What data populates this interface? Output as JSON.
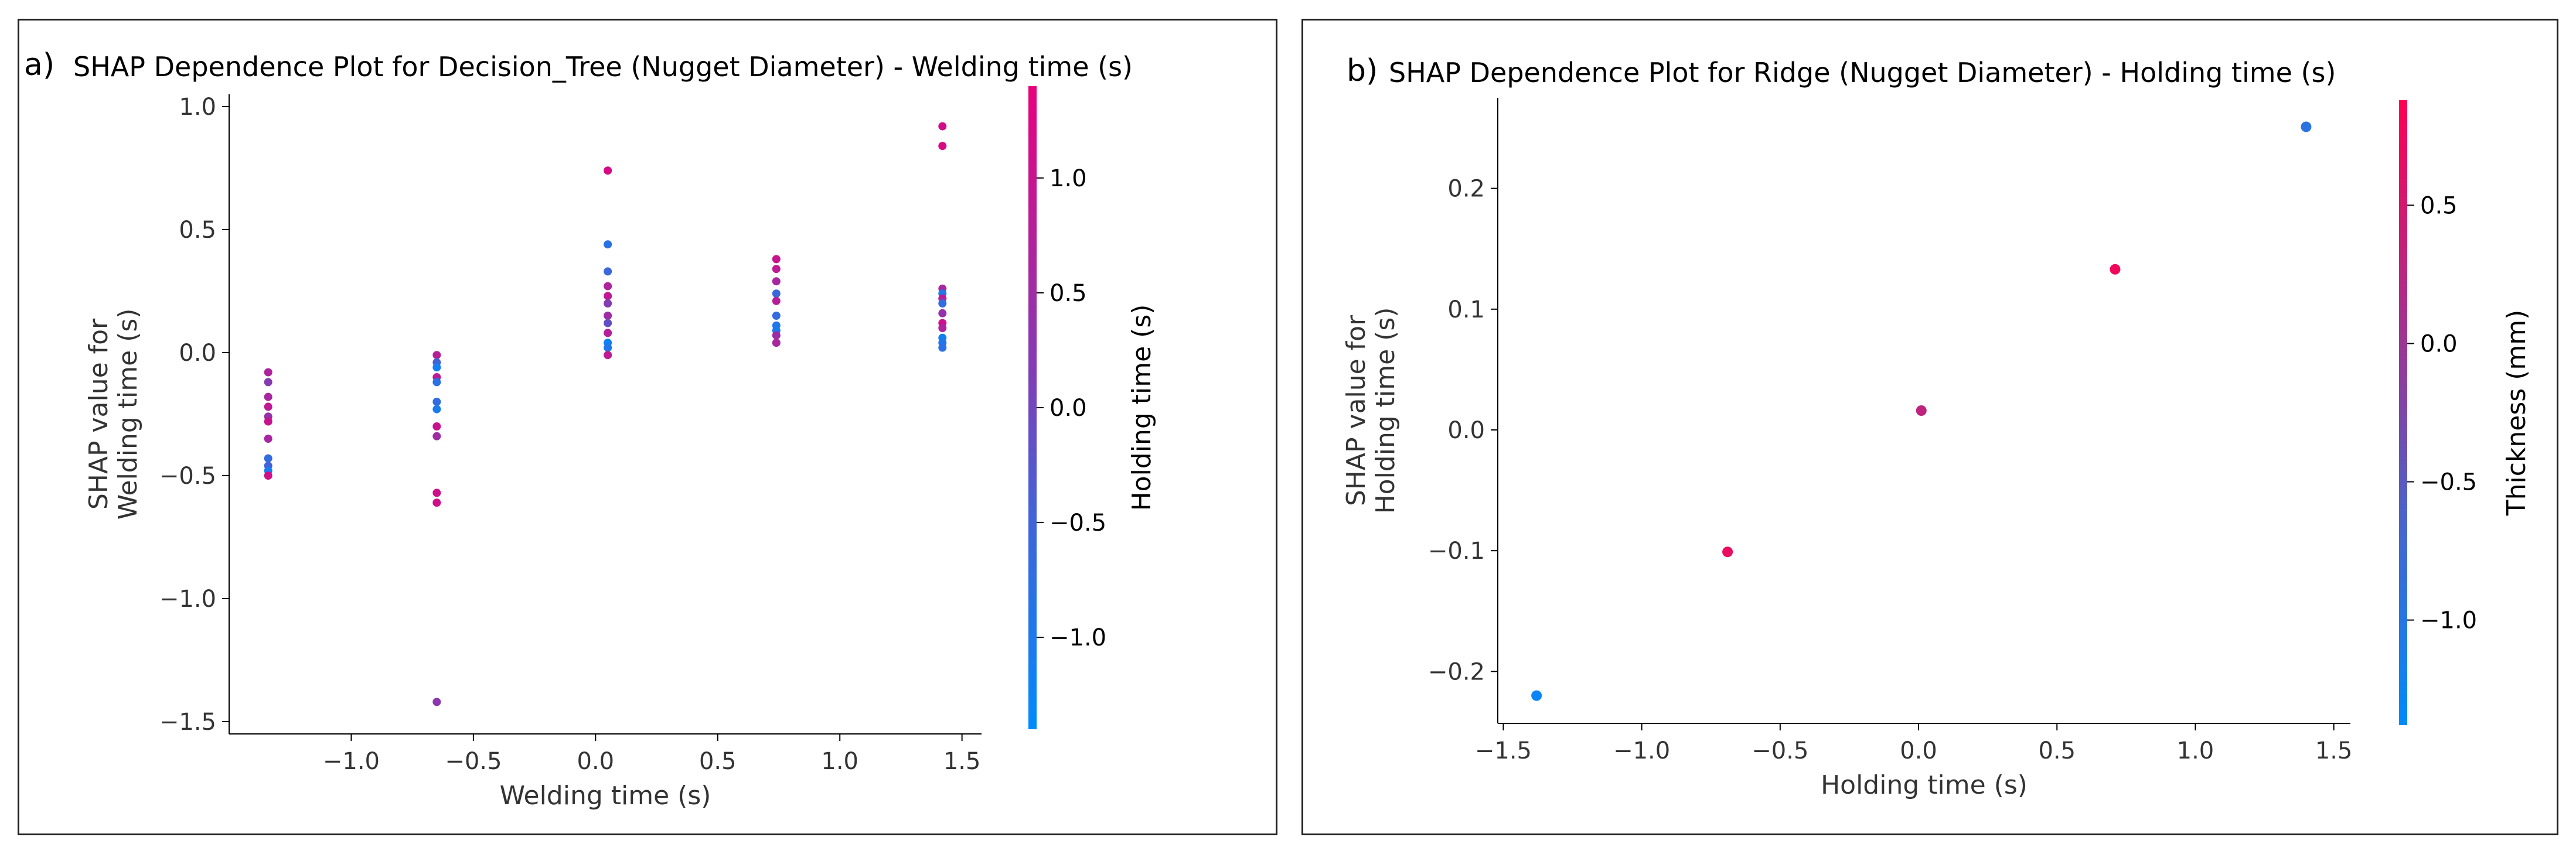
{
  "chart_data": [
    {
      "panel_label": "a)",
      "type": "scatter",
      "title": "SHAP Dependence Plot for Decision_Tree (Nugget Diameter) - Welding time (s)",
      "xlabel": "Welding time (s)",
      "ylabel": "SHAP value for\nWelding time (s)",
      "xlim": [
        -1.5,
        1.58
      ],
      "ylim": [
        -1.55,
        1.05
      ],
      "xticks": [
        -1.0,
        -0.5,
        0.0,
        0.5,
        1.0,
        1.5
      ],
      "yticks": [
        -1.5,
        -1.0,
        -0.5,
        0.0,
        0.5,
        1.0
      ],
      "colorbar": {
        "label": "Holding time (s)",
        "range": [
          -1.4,
          1.4
        ],
        "ticks": [
          -1.0,
          -0.5,
          0.0,
          0.5,
          1.0
        ]
      },
      "colormap": [
        "#008afb",
        "#e8007c"
      ],
      "points": [
        {
          "x": -1.34,
          "y": -0.08,
          "c": 0.7
        },
        {
          "x": -1.34,
          "y": -0.12,
          "c": 0.2
        },
        {
          "x": -1.34,
          "y": -0.18,
          "c": 0.6
        },
        {
          "x": -1.34,
          "y": -0.22,
          "c": 0.9
        },
        {
          "x": -1.34,
          "y": -0.26,
          "c": 0.4
        },
        {
          "x": -1.34,
          "y": -0.28,
          "c": 1.0
        },
        {
          "x": -1.34,
          "y": -0.35,
          "c": 0.6
        },
        {
          "x": -1.34,
          "y": -0.43,
          "c": -0.8
        },
        {
          "x": -1.34,
          "y": -0.46,
          "c": -0.6
        },
        {
          "x": -1.34,
          "y": -0.48,
          "c": -1.1
        },
        {
          "x": -1.34,
          "y": -0.5,
          "c": 1.1
        },
        {
          "x": -0.65,
          "y": -0.01,
          "c": 0.8
        },
        {
          "x": -0.65,
          "y": -0.04,
          "c": -0.6
        },
        {
          "x": -0.65,
          "y": -0.06,
          "c": -1.2
        },
        {
          "x": -0.65,
          "y": -0.1,
          "c": 0.9
        },
        {
          "x": -0.65,
          "y": -0.12,
          "c": -0.9
        },
        {
          "x": -0.65,
          "y": -0.2,
          "c": -0.8
        },
        {
          "x": -0.65,
          "y": -0.23,
          "c": -1.1
        },
        {
          "x": -0.65,
          "y": -0.3,
          "c": 1.0
        },
        {
          "x": -0.65,
          "y": -0.34,
          "c": 0.5
        },
        {
          "x": -0.65,
          "y": -0.57,
          "c": 1.1
        },
        {
          "x": -0.65,
          "y": -0.61,
          "c": 1.1
        },
        {
          "x": -0.65,
          "y": -1.42,
          "c": 0.3
        },
        {
          "x": 0.05,
          "y": 0.74,
          "c": 1.2
        },
        {
          "x": 0.05,
          "y": 0.44,
          "c": -0.9
        },
        {
          "x": 0.05,
          "y": 0.33,
          "c": -0.7
        },
        {
          "x": 0.05,
          "y": 0.27,
          "c": 0.7
        },
        {
          "x": 0.05,
          "y": 0.23,
          "c": 0.9
        },
        {
          "x": 0.05,
          "y": 0.2,
          "c": 0.2
        },
        {
          "x": 0.05,
          "y": 0.15,
          "c": 0.5
        },
        {
          "x": 0.05,
          "y": 0.12,
          "c": -0.2
        },
        {
          "x": 0.05,
          "y": 0.08,
          "c": 0.8
        },
        {
          "x": 0.05,
          "y": 0.04,
          "c": -1.2
        },
        {
          "x": 0.05,
          "y": 0.02,
          "c": -1.0
        },
        {
          "x": 0.05,
          "y": -0.01,
          "c": 0.9
        },
        {
          "x": 0.74,
          "y": 0.38,
          "c": 1.0
        },
        {
          "x": 0.74,
          "y": 0.34,
          "c": 0.9
        },
        {
          "x": 0.74,
          "y": 0.29,
          "c": 0.6
        },
        {
          "x": 0.74,
          "y": 0.24,
          "c": -0.7
        },
        {
          "x": 0.74,
          "y": 0.21,
          "c": 0.8
        },
        {
          "x": 0.74,
          "y": 0.15,
          "c": -0.8
        },
        {
          "x": 0.74,
          "y": 0.11,
          "c": -1.0
        },
        {
          "x": 0.74,
          "y": 0.09,
          "c": -1.1
        },
        {
          "x": 0.74,
          "y": 0.07,
          "c": 0.5
        },
        {
          "x": 0.74,
          "y": 0.04,
          "c": 0.6
        },
        {
          "x": 1.42,
          "y": 0.92,
          "c": 1.1
        },
        {
          "x": 1.42,
          "y": 0.84,
          "c": 1.2
        },
        {
          "x": 1.42,
          "y": 0.26,
          "c": 0.6
        },
        {
          "x": 1.42,
          "y": 0.24,
          "c": -1.0
        },
        {
          "x": 1.42,
          "y": 0.22,
          "c": 0.8
        },
        {
          "x": 1.42,
          "y": 0.2,
          "c": -0.8
        },
        {
          "x": 1.42,
          "y": 0.16,
          "c": 0.4
        },
        {
          "x": 1.42,
          "y": 0.12,
          "c": 1.1
        },
        {
          "x": 1.42,
          "y": 0.1,
          "c": 0.7
        },
        {
          "x": 1.42,
          "y": 0.06,
          "c": -1.2
        },
        {
          "x": 1.42,
          "y": 0.04,
          "c": -1.0
        },
        {
          "x": 1.42,
          "y": 0.02,
          "c": -0.9
        }
      ]
    },
    {
      "panel_label": "b)",
      "type": "scatter",
      "title": "SHAP Dependence Plot for Ridge (Nugget Diameter) - Holding time (s)",
      "xlabel": "Holding time (s)",
      "ylabel": "SHAP value for\nHolding time (s)",
      "xlim": [
        -1.52,
        1.56
      ],
      "ylim": [
        -0.243,
        0.275
      ],
      "xticks": [
        -1.5,
        -1.0,
        -0.5,
        0.0,
        0.5,
        1.0,
        1.5
      ],
      "yticks": [
        -0.2,
        -0.1,
        0.0,
        0.1,
        0.2
      ],
      "colorbar": {
        "label": "Thickness (mm)",
        "range": [
          -1.38,
          0.88
        ],
        "ticks": [
          -1.0,
          -0.5,
          0.0,
          0.5
        ]
      },
      "colormap": [
        "#008afb",
        "#ff0052"
      ],
      "points": [
        {
          "x": -1.38,
          "y": -0.22,
          "c": -1.3
        },
        {
          "x": -0.69,
          "y": -0.101,
          "c": 0.7
        },
        {
          "x": 0.01,
          "y": 0.016,
          "c": 0.3
        },
        {
          "x": 0.71,
          "y": 0.133,
          "c": 0.75
        },
        {
          "x": 1.4,
          "y": 0.251,
          "c": -1.0
        }
      ]
    }
  ]
}
